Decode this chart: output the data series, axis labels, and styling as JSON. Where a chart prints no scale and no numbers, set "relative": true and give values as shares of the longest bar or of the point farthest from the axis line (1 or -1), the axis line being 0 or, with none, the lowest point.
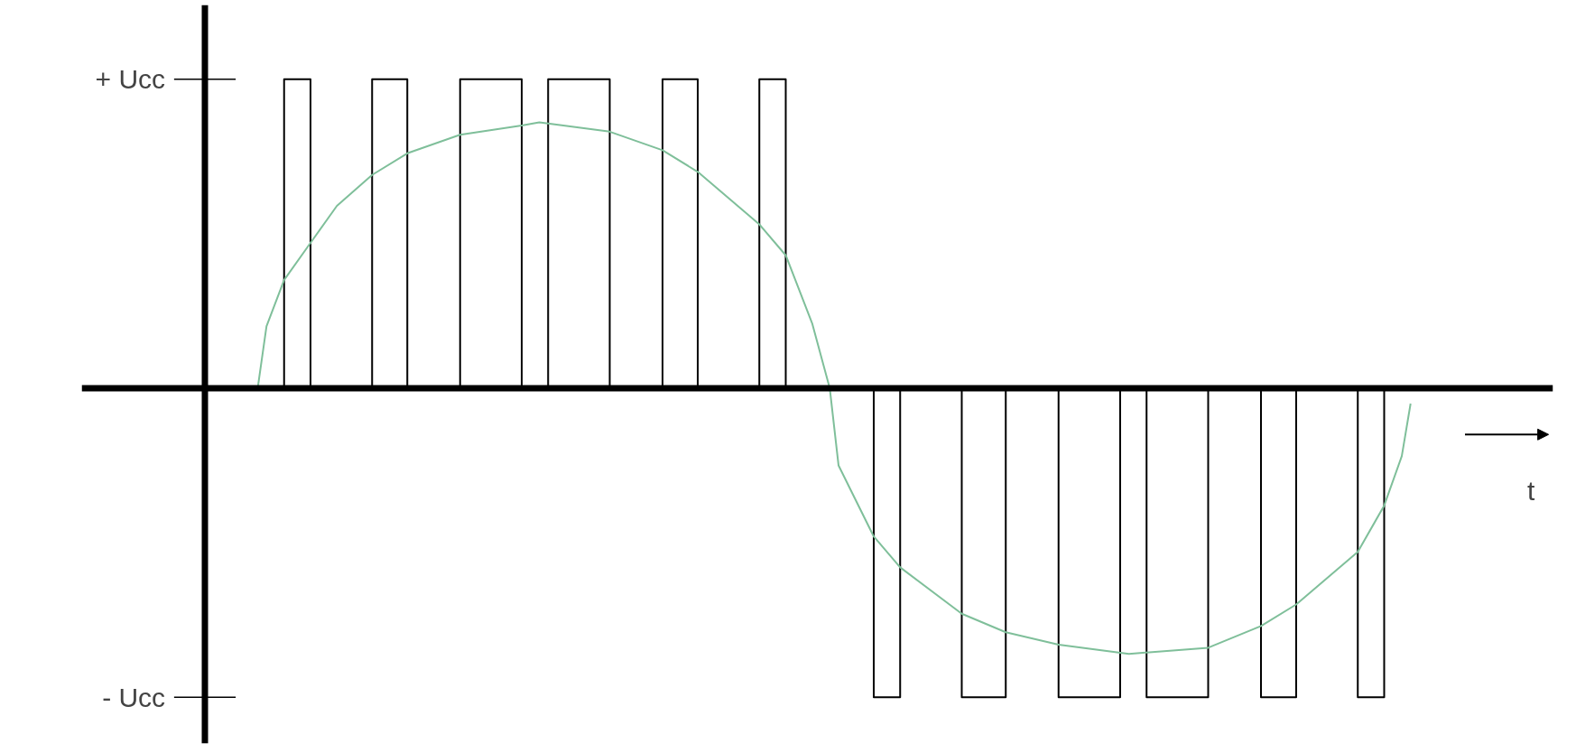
{
  "chart_data": {
    "type": "line",
    "relative": true,
    "xlabel": "t",
    "tick_labels": false,
    "annotations": [
      "+ Ucc",
      "- Ucc"
    ],
    "ref_lines": [
      {
        "axis": "y",
        "value": 0,
        "color": "#000000"
      }
    ],
    "categories": [
      null,
      null,
      null,
      null,
      null,
      null,
      null,
      null,
      null,
      null,
      null,
      null,
      null,
      null,
      null,
      null,
      null,
      null,
      null,
      null,
      null,
      null,
      null,
      null,
      null,
      null,
      null,
      null,
      null,
      null,
      null,
      null,
      null,
      null,
      null,
      null,
      null,
      null,
      null,
      null,
      null,
      null,
      null,
      null,
      null,
      null,
      null,
      null,
      null,
      null,
      null,
      null,
      null,
      null,
      null,
      null,
      null,
      null,
      null,
      null,
      null,
      null,
      null,
      null,
      null,
      null,
      null,
      null,
      null,
      null,
      null,
      null,
      null,
      null,
      null,
      null,
      null,
      null,
      null,
      null,
      null,
      null,
      null,
      null,
      null,
      null,
      null,
      null,
      null,
      null,
      null,
      null,
      null,
      null,
      null,
      null,
      null,
      null,
      null,
      null,
      null,
      null,
      null,
      null,
      null,
      null,
      null,
      null,
      null,
      null,
      null,
      null,
      null,
      null,
      null,
      null,
      null,
      null,
      null,
      null,
      null,
      null,
      null,
      null,
      null,
      null,
      null,
      null,
      null,
      null,
      null,
      null,
      null,
      null,
      null,
      null,
      null,
      null
    ],
    "series": [
      {
        "type": "step",
        "color": "#000000",
        "values": [
          0,
          0,
          0,
          0,
          0,
          0,
          0,
          0,
          0,
          1,
          1,
          1,
          0,
          0,
          0,
          0,
          0,
          0,
          0,
          1,
          1,
          1,
          1,
          0,
          0,
          0,
          0,
          0,
          0,
          1,
          1,
          1,
          1,
          1,
          1,
          1,
          0,
          0,
          0,
          1,
          1,
          1,
          1,
          1,
          1,
          1,
          0,
          0,
          0,
          0,
          0,
          0,
          1,
          1,
          1,
          1,
          0,
          0,
          0,
          0,
          0,
          0,
          0,
          1,
          1,
          1,
          0,
          0,
          0,
          0,
          0,
          0,
          0,
          0,
          0,
          0,
          -1,
          -1,
          -1,
          0,
          0,
          0,
          0,
          0,
          0,
          0,
          -1,
          -1,
          -1,
          -1,
          -1,
          0,
          0,
          0,
          0,
          0,
          0,
          -1,
          -1,
          -1,
          -1,
          -1,
          -1,
          -1,
          0,
          0,
          0,
          -1,
          -1,
          -1,
          -1,
          -1,
          -1,
          -1,
          0,
          0,
          0,
          0,
          0,
          0,
          -1,
          -1,
          -1,
          -1,
          0,
          0,
          0,
          0,
          0,
          0,
          0,
          -1,
          -1,
          -1,
          0,
          0,
          0,
          0
        ]
      },
      {
        "color": "#7fbf9a",
        "values": [
          null,
          null,
          null,
          null,
          null,
          null,
          0,
          0.2,
          null,
          0.35,
          null,
          null,
          0.47,
          null,
          null,
          0.59,
          null,
          null,
          null,
          0.69,
          null,
          null,
          null,
          0.76,
          null,
          null,
          null,
          null,
          null,
          0.82,
          null,
          null,
          null,
          null,
          null,
          null,
          0.85,
          null,
          0.86,
          null,
          null,
          null,
          null,
          null,
          null,
          null,
          0.83,
          null,
          null,
          null,
          null,
          null,
          0.77,
          null,
          null,
          null,
          0.7,
          null,
          null,
          null,
          null,
          null,
          null,
          0.53,
          null,
          null,
          0.43,
          null,
          null,
          0.21,
          null,
          0,
          -0.25,
          null,
          null,
          null,
          -0.48,
          null,
          null,
          -0.58,
          null,
          null,
          null,
          null,
          null,
          null,
          -0.73,
          null,
          null,
          null,
          null,
          -0.79,
          null,
          null,
          null,
          null,
          null,
          -0.83,
          null,
          null,
          null,
          null,
          null,
          null,
          null,
          -0.86,
          null,
          null,
          null,
          null,
          null,
          null,
          null,
          null,
          -0.84,
          null,
          null,
          null,
          null,
          null,
          -0.77,
          null,
          null,
          null,
          -0.7,
          null,
          null,
          null,
          null,
          null,
          null,
          -0.53,
          null,
          null,
          -0.38,
          null,
          -0.22,
          -0.05
        ]
      }
    ]
  }
}
